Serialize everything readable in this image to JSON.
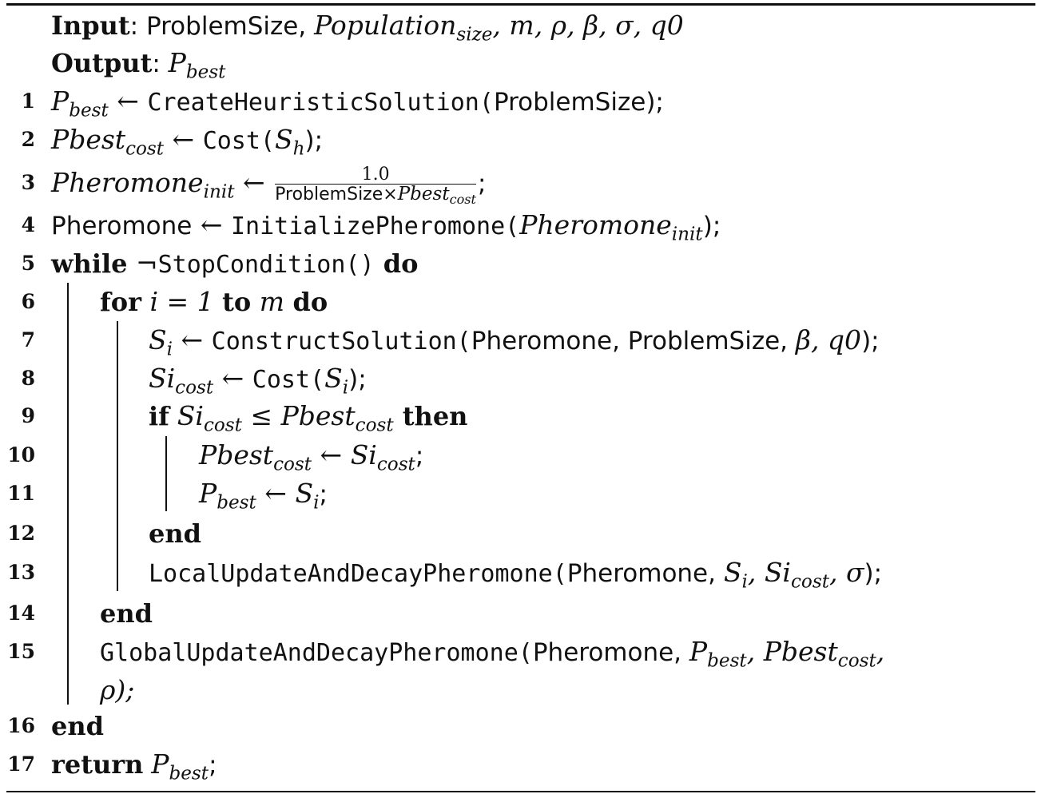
{
  "algorithm": {
    "input_label": "Input",
    "input_colon": ":",
    "input_problem": "ProblemSize,",
    "input_pop": "Population",
    "input_pop_sub": "size",
    "input_rest": ", m, ρ, β, σ, q0",
    "output_label": "Output",
    "output_colon": ":",
    "output_var": "P",
    "output_var_sub": "best",
    "lines": [
      {
        "n": "1",
        "a": "P",
        "a_sub": "best",
        "arrow": " ← ",
        "fn": "CreateHeuristicSolution(",
        "arg": "ProblemSize",
        "end": ");"
      },
      {
        "n": "2",
        "a": "Pbest",
        "a_sub": "cost",
        "arrow": " ← ",
        "fn": "Cost(",
        "arg": "S",
        "arg_sub": "h",
        "end": ");"
      },
      {
        "n": "3",
        "a": "Pheromone",
        "a_sub": "init",
        "arrow": " ← ",
        "num": "1.0",
        "den_text": "ProblemSize×",
        "den_var": "Pbest",
        "den_sub": "cost",
        "end": ";"
      },
      {
        "n": "4",
        "a": "Pheromone",
        "arrow": " ← ",
        "fn": "InitializePheromone(",
        "arg": "Pheromone",
        "arg_sub": "init",
        "end": ");"
      },
      {
        "n": "5",
        "kw1": "while",
        "neg": " ¬",
        "fn": "StopCondition()",
        "kw2": " do"
      },
      {
        "n": "6",
        "kw1": "for",
        "mid": " i = 1 ",
        "kw2": "to",
        "mid2": " m ",
        "kw3": "do"
      },
      {
        "n": "7",
        "a": "S",
        "a_sub": "i",
        "arrow": " ← ",
        "fn": "ConstructSolution(",
        "arg": "Pheromone, ProblemSize, ",
        "arg2": "β, q0",
        "end": ");"
      },
      {
        "n": "8",
        "a": "Si",
        "a_sub": "cost",
        "arrow": " ← ",
        "fn": "Cost(",
        "arg": "S",
        "arg_sub": "i",
        "end": ");"
      },
      {
        "n": "9",
        "kw1": "if",
        "a": "Si",
        "a_sub": "cost",
        "op": " ≤ ",
        "b": "Pbest",
        "b_sub": "cost",
        "kw2": " then"
      },
      {
        "n": "10",
        "a": "Pbest",
        "a_sub": "cost",
        "arrow": " ← ",
        "b": "Si",
        "b_sub": "cost",
        "end": ";"
      },
      {
        "n": "11",
        "a": "P",
        "a_sub": "best",
        "arrow": " ← ",
        "b": "S",
        "b_sub": "i",
        "end": ";"
      },
      {
        "n": "12",
        "kw1": "end"
      },
      {
        "n": "13",
        "fn": "LocalUpdateAndDecayPheromone(",
        "arg": "Pheromone, ",
        "v1": "S",
        "v1_sub": "i",
        "c1": ", ",
        "v2": "Si",
        "v2_sub": "cost",
        "c2": ", σ",
        "end": ");"
      },
      {
        "n": "14",
        "kw1": "end"
      },
      {
        "n": "15",
        "fn": "GlobalUpdateAndDecayPheromone(",
        "arg": "Pheromone, ",
        "v1": "P",
        "v1_sub": "best",
        "c1": ", ",
        "v2": "Pbest",
        "v2_sub": "cost",
        "c2": ",",
        "cont": "ρ);"
      },
      {
        "n": "16",
        "kw1": "end"
      },
      {
        "n": "17",
        "kw1": "return",
        "b": "P",
        "b_sub": "best",
        "end": ";"
      }
    ]
  }
}
